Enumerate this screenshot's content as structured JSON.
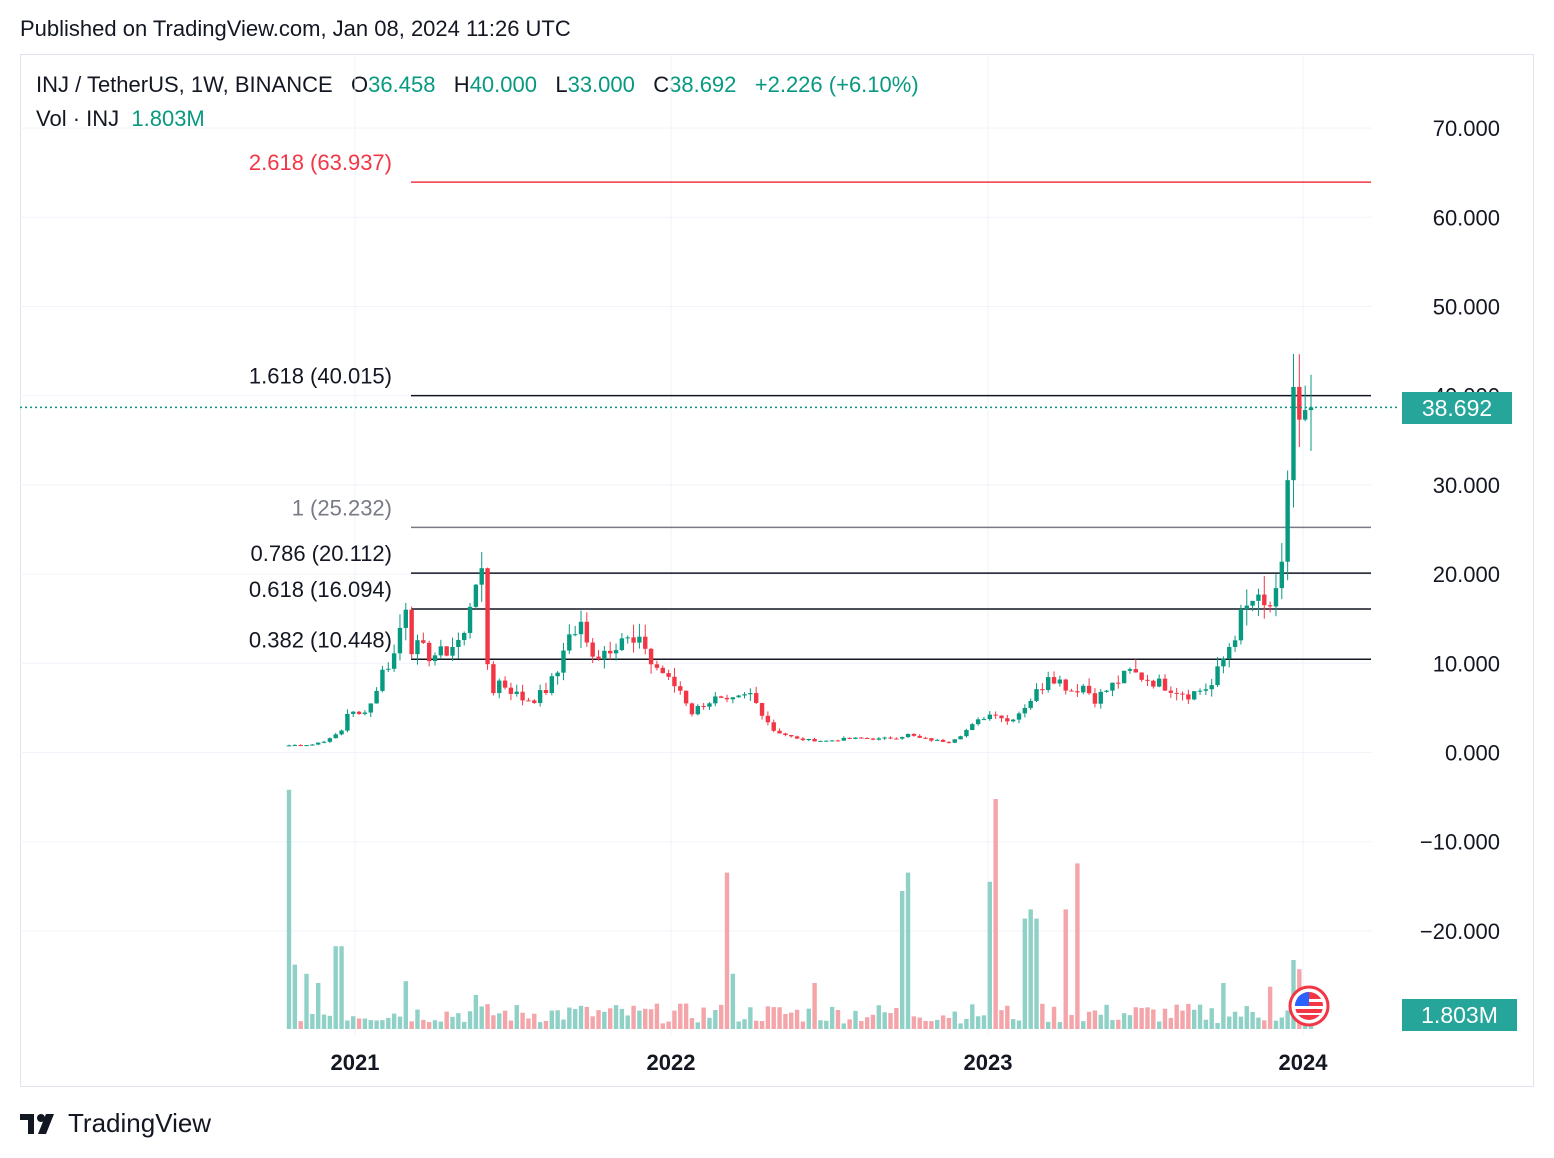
{
  "header": {
    "published": "Published on TradingView.com, Jan 08, 2024 11:26 UTC"
  },
  "legend": {
    "symbol": "INJ / TetherUS, 1W, BINANCE",
    "o_label": "O",
    "o_value": "36.458",
    "h_label": "H",
    "h_value": "40.000",
    "l_label": "L",
    "l_value": "33.000",
    "c_label": "C",
    "c_value": "38.692",
    "change": "+2.226 (+6.10%)",
    "vol_label": "Vol · INJ",
    "vol_value": "1.803M"
  },
  "badges": {
    "last_price": "38.692",
    "last_volume": "1.803M"
  },
  "footer": {
    "brand": "TradingView"
  },
  "colors": {
    "up": "#089981",
    "down": "#f23645",
    "vol_up": "#8fd1c6",
    "vol_down": "#f3a5a9",
    "fib_top": "#f23645",
    "fib_one": "#787b86",
    "fib": "#131722"
  },
  "chart_data": {
    "type": "candlestick",
    "y_ticks": [
      "70.000",
      "60.000",
      "50.000",
      "40.000",
      "30.000",
      "20.000",
      "10.000",
      "0.000",
      "−10.000",
      "−20.000"
    ],
    "y_tick_values": [
      70,
      60,
      50,
      40,
      30,
      20,
      10,
      0,
      -10,
      -20
    ],
    "x_ticks": [
      "2021",
      "2022",
      "2023",
      "2024"
    ],
    "fib_levels": [
      {
        "label": "2.618 (63.937)",
        "value": 63.937,
        "color": "#f23645"
      },
      {
        "label": "1.618 (40.015)",
        "value": 40.015,
        "color": "#131722"
      },
      {
        "label": "1 (25.232)",
        "value": 25.232,
        "color": "#787b86"
      },
      {
        "label": "0.786 (20.112)",
        "value": 20.112,
        "color": "#131722"
      },
      {
        "label": "0.618 (16.094)",
        "value": 16.094,
        "color": "#131722"
      },
      {
        "label": "0.382 (10.448)",
        "value": 10.448,
        "color": "#131722"
      }
    ],
    "last_price": 38.692,
    "price_anchors": [
      [
        0,
        0.8
      ],
      [
        4,
        0.9
      ],
      [
        7,
        1.5
      ],
      [
        9,
        2.5
      ],
      [
        10,
        4.5
      ],
      [
        12,
        4.2
      ],
      [
        14,
        5.5
      ],
      [
        16,
        9
      ],
      [
        18,
        11
      ],
      [
        19,
        14
      ],
      [
        20,
        17
      ],
      [
        21,
        12
      ],
      [
        24,
        11
      ],
      [
        26,
        11
      ],
      [
        28,
        12
      ],
      [
        30,
        13
      ],
      [
        31,
        17
      ],
      [
        32,
        20
      ],
      [
        33,
        19
      ],
      [
        34,
        10
      ],
      [
        35,
        7
      ],
      [
        36,
        8
      ],
      [
        38,
        7
      ],
      [
        40,
        6
      ],
      [
        42,
        6
      ],
      [
        44,
        7
      ],
      [
        46,
        9
      ],
      [
        47,
        12
      ],
      [
        48,
        13
      ],
      [
        50,
        14
      ],
      [
        51,
        12
      ],
      [
        53,
        11
      ],
      [
        55,
        12
      ],
      [
        57,
        13
      ],
      [
        59,
        12
      ],
      [
        61,
        12
      ],
      [
        62,
        10
      ],
      [
        64,
        9
      ],
      [
        65,
        8
      ],
      [
        67,
        7
      ],
      [
        69,
        4.5
      ],
      [
        71,
        5.5
      ],
      [
        73,
        6
      ],
      [
        75,
        5.5
      ],
      [
        77,
        6
      ],
      [
        79,
        6.5
      ],
      [
        81,
        4.5
      ],
      [
        83,
        2.5
      ],
      [
        85,
        2
      ],
      [
        87,
        1.5
      ],
      [
        89,
        1.4
      ],
      [
        92,
        1.3
      ],
      [
        95,
        1.5
      ],
      [
        98,
        1.6
      ],
      [
        101,
        1.5
      ],
      [
        104,
        1.7
      ],
      [
        106,
        2
      ],
      [
        108,
        1.6
      ],
      [
        110,
        1.4
      ],
      [
        113,
        1.2
      ],
      [
        115,
        2
      ],
      [
        117,
        3
      ],
      [
        119,
        4
      ],
      [
        121,
        4.5
      ],
      [
        123,
        3.5
      ],
      [
        125,
        4.5
      ],
      [
        127,
        6
      ],
      [
        129,
        7.5
      ],
      [
        130,
        9
      ],
      [
        132,
        8
      ],
      [
        134,
        7
      ],
      [
        136,
        7.5
      ],
      [
        138,
        6
      ],
      [
        140,
        7
      ],
      [
        142,
        8
      ],
      [
        144,
        9
      ],
      [
        146,
        8.5
      ],
      [
        148,
        8
      ],
      [
        150,
        7.5
      ],
      [
        152,
        7
      ],
      [
        154,
        6.5
      ],
      [
        156,
        7
      ],
      [
        158,
        7.5
      ],
      [
        159,
        9
      ],
      [
        161,
        12
      ],
      [
        163,
        15
      ],
      [
        165,
        17
      ],
      [
        167,
        16
      ],
      [
        169,
        17
      ],
      [
        170,
        20
      ],
      [
        171,
        31
      ],
      [
        172,
        41
      ],
      [
        173,
        36
      ],
      [
        174,
        36.5
      ],
      [
        175,
        38.7
      ]
    ],
    "volume_peaks_millions": [
      [
        0,
        26
      ],
      [
        1,
        7
      ],
      [
        3,
        6
      ],
      [
        5,
        5
      ],
      [
        8,
        9
      ],
      [
        9,
        9
      ],
      [
        20,
        5.2
      ],
      [
        32,
        3.7
      ],
      [
        51,
        2.4
      ],
      [
        60,
        2
      ],
      [
        75,
        17
      ],
      [
        76,
        6
      ],
      [
        90,
        5
      ],
      [
        105,
        15
      ],
      [
        106,
        17
      ],
      [
        120,
        16
      ],
      [
        121,
        25
      ],
      [
        126,
        12
      ],
      [
        127,
        13
      ],
      [
        128,
        12
      ],
      [
        133,
        13
      ],
      [
        135,
        18
      ],
      [
        160,
        5
      ],
      [
        168,
        4.6
      ],
      [
        172,
        7.5
      ],
      [
        173,
        6.5
      ],
      [
        175,
        1.803
      ]
    ]
  }
}
